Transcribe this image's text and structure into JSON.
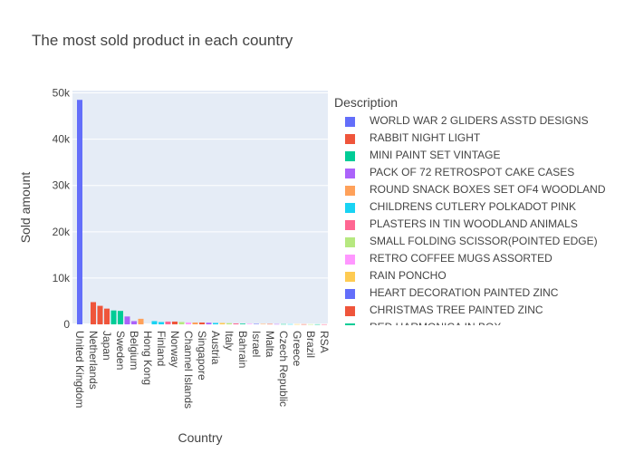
{
  "chart_data": {
    "type": "bar",
    "title": "The most sold product in each country",
    "xlabel": "Country",
    "ylabel": "Sold amount",
    "ylim": [
      0,
      50500
    ],
    "yticks": [
      0,
      10000,
      20000,
      30000,
      40000,
      50000
    ],
    "ytick_labels": [
      "0",
      "10k",
      "20k",
      "30k",
      "40k",
      "50k"
    ],
    "grid": true,
    "legend_title": "Description",
    "legend_position": "right",
    "categories": [
      "United Kingdom",
      "Netherlands",
      "Japan",
      "Sweden",
      "Belgium",
      "Hong Kong",
      "Finland",
      "Norway",
      "Channel Islands",
      "Singapore",
      "Austria",
      "Italy",
      "Bahrain",
      "Israel",
      "Malta",
      "Czech Republic",
      "Greece",
      "Brazil",
      "RSA"
    ],
    "bars": [
      {
        "category_index": 0,
        "value": 48500,
        "series": 0
      },
      {
        "category_index": 1,
        "value": 4800,
        "series": 1
      },
      {
        "category_index": 1.5,
        "value": 4000,
        "series": 1
      },
      {
        "category_index": 2,
        "value": 3400,
        "series": 1
      },
      {
        "category_index": 2.5,
        "value": 3000,
        "series": 2
      },
      {
        "category_index": 3,
        "value": 2900,
        "series": 2
      },
      {
        "category_index": 3.5,
        "value": 1700,
        "series": 3
      },
      {
        "category_index": 4,
        "value": 700,
        "series": 3
      },
      {
        "category_index": 4.5,
        "value": 1200,
        "series": 4
      },
      {
        "category_index": 5.5,
        "value": 700,
        "series": 5
      },
      {
        "category_index": 6,
        "value": 500,
        "series": 5
      },
      {
        "category_index": 6.5,
        "value": 600,
        "series": 6
      },
      {
        "category_index": 7,
        "value": 600,
        "series": 1
      },
      {
        "category_index": 7.5,
        "value": 500,
        "series": 7
      },
      {
        "category_index": 8,
        "value": 400,
        "series": 8
      },
      {
        "category_index": 8.5,
        "value": 400,
        "series": 4
      },
      {
        "category_index": 9,
        "value": 400,
        "series": 1
      },
      {
        "category_index": 9.5,
        "value": 350,
        "series": 3
      },
      {
        "category_index": 10,
        "value": 300,
        "series": 5
      },
      {
        "category_index": 10.5,
        "value": 300,
        "series": 9
      },
      {
        "category_index": 11,
        "value": 250,
        "series": 7
      },
      {
        "category_index": 11.5,
        "value": 200,
        "series": 6
      },
      {
        "category_index": 12,
        "value": 150,
        "series": 2
      },
      {
        "category_index": 12.5,
        "value": 120,
        "series": 8
      },
      {
        "category_index": 13,
        "value": 100,
        "series": 10
      },
      {
        "category_index": 13.5,
        "value": 90,
        "series": 4
      },
      {
        "category_index": 14,
        "value": 80,
        "series": 11
      },
      {
        "category_index": 14.5,
        "value": 70,
        "series": 3
      },
      {
        "category_index": 15,
        "value": 60,
        "series": 12
      },
      {
        "category_index": 15.5,
        "value": 50,
        "series": 5
      },
      {
        "category_index": 16,
        "value": 40,
        "series": 9
      },
      {
        "category_index": 16.5,
        "value": 35,
        "series": 1
      },
      {
        "category_index": 17,
        "value": 30,
        "series": 7
      },
      {
        "category_index": 17.5,
        "value": 25,
        "series": 2
      },
      {
        "category_index": 18,
        "value": 20,
        "series": 6
      }
    ],
    "series": [
      {
        "name": "WORLD WAR 2 GLIDERS ASSTD DESIGNS",
        "color": "#636efa"
      },
      {
        "name": "RABBIT NIGHT LIGHT",
        "color": "#EF553B"
      },
      {
        "name": "MINI PAINT SET VINTAGE",
        "color": "#00cc96"
      },
      {
        "name": "PACK OF 72 RETROSPOT CAKE CASES",
        "color": "#ab63fa"
      },
      {
        "name": "ROUND SNACK BOXES SET OF4 WOODLAND",
        "color": "#FFA15A"
      },
      {
        "name": "CHILDRENS CUTLERY POLKADOT PINK",
        "color": "#19d3f3"
      },
      {
        "name": "PLASTERS IN TIN WOODLAND ANIMALS",
        "color": "#FF6692"
      },
      {
        "name": "SMALL FOLDING SCISSOR(POINTED EDGE)",
        "color": "#B6E880"
      },
      {
        "name": "RETRO COFFEE MUGS ASSORTED",
        "color": "#FF97FF"
      },
      {
        "name": "RAIN PONCHO",
        "color": "#FECB52"
      },
      {
        "name": "HEART DECORATION PAINTED ZINC",
        "color": "#636efa"
      },
      {
        "name": "CHRISTMAS TREE PAINTED ZINC",
        "color": "#EF553B"
      },
      {
        "name": "RED  HARMONICA IN BOX",
        "color": "#00cc96"
      }
    ]
  }
}
